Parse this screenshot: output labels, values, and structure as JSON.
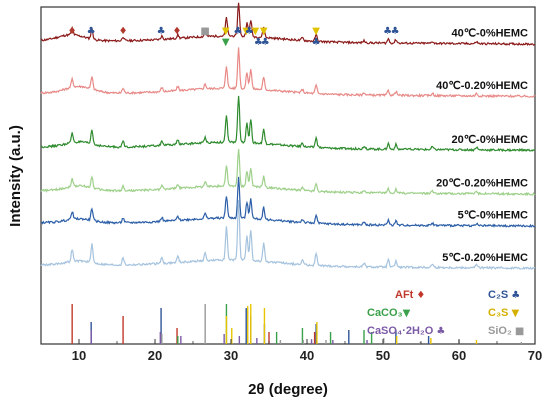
{
  "chart_data": {
    "type": "line",
    "xlabel": "2θ (degree)",
    "ylabel": "Intensity (a.u.)",
    "xlim": [
      5,
      70
    ],
    "xticks": [
      "10",
      "20",
      "30",
      "40",
      "50",
      "60",
      "70"
    ],
    "grid": false,
    "y_ticks_shown": false,
    "series": [
      {
        "name": "40℃-0%HEMC",
        "color": "#8b1a1a",
        "baseline": 0.9,
        "amp": 1.0,
        "hump_x": 9,
        "hump_amp": 0.018
      },
      {
        "name": "40℃-0.20%HEMC",
        "color": "#e88a88",
        "baseline": 0.745,
        "amp": 1.2,
        "hump_x": 10,
        "hump_amp": 0.02
      },
      {
        "name": "20℃-0%HEMC",
        "color": "#2e8b2e",
        "baseline": 0.585,
        "amp": 1.4,
        "hump_x": 10,
        "hump_amp": 0.015
      },
      {
        "name": "20℃-0.20%HEMC",
        "color": "#9ed08a",
        "baseline": 0.455,
        "amp": 1.1,
        "hump_x": 10,
        "hump_amp": 0.015
      },
      {
        "name": "5℃-0%HEMC",
        "color": "#2c5fa8",
        "baseline": 0.36,
        "amp": 1.2,
        "hump_x": 10,
        "hump_amp": 0.012
      },
      {
        "name": "5℃-0.20%HEMC",
        "color": "#a6c3de",
        "baseline": 0.235,
        "amp": 1.8,
        "hump_x": 10,
        "hump_amp": 0.012
      }
    ],
    "peaks": [
      {
        "x": 9.1,
        "h": 0.02
      },
      {
        "x": 11.7,
        "h": 0.03
      },
      {
        "x": 15.8,
        "h": 0.012
      },
      {
        "x": 20.9,
        "h": 0.01
      },
      {
        "x": 23.0,
        "h": 0.01
      },
      {
        "x": 26.6,
        "h": 0.012
      },
      {
        "x": 29.4,
        "h": 0.055
      },
      {
        "x": 31.0,
        "h": 0.1
      },
      {
        "x": 32.1,
        "h": 0.04
      },
      {
        "x": 32.6,
        "h": 0.05
      },
      {
        "x": 34.3,
        "h": 0.03
      },
      {
        "x": 39.4,
        "h": 0.008
      },
      {
        "x": 41.2,
        "h": 0.02
      },
      {
        "x": 47.5,
        "h": 0.006
      },
      {
        "x": 50.7,
        "h": 0.012
      },
      {
        "x": 51.7,
        "h": 0.01
      },
      {
        "x": 56.5,
        "h": 0.006
      },
      {
        "x": 62.3,
        "h": 0.006
      }
    ],
    "peak_markers": [
      {
        "x": 9.1,
        "symbol": "♦",
        "color": "#b03a2e"
      },
      {
        "x": 11.6,
        "symbol": "♣",
        "color": "#2f5597"
      },
      {
        "x": 15.8,
        "symbol": "♦",
        "color": "#b03a2e"
      },
      {
        "x": 20.8,
        "symbol": "♣",
        "color": "#2f5597"
      },
      {
        "x": 22.9,
        "symbol": "♦",
        "color": "#b03a2e"
      },
      {
        "x": 26.6,
        "symbol": "■",
        "color": "#999999"
      },
      {
        "x": 29.3,
        "symbol": "▼",
        "color": "#e0c200",
        "row": 0
      },
      {
        "x": 29.3,
        "symbol": "▼",
        "color": "#3aa04a",
        "row": 1
      },
      {
        "x": 30.9,
        "symbol": "♣",
        "color": "#2f5597"
      },
      {
        "x": 32.0,
        "symbol": "▼",
        "color": "#e0c200"
      },
      {
        "x": 32.4,
        "symbol": "♣",
        "color": "#2f5597"
      },
      {
        "x": 33.2,
        "symbol": "▼",
        "color": "#e0c200"
      },
      {
        "x": 34.3,
        "symbol": "▼",
        "color": "#e0c200"
      },
      {
        "x": 33.6,
        "symbol": "♣",
        "color": "#2f5597",
        "row": 1
      },
      {
        "x": 34.5,
        "symbol": "♣",
        "color": "#2f5597",
        "row": 1
      },
      {
        "x": 41.2,
        "symbol": "▼",
        "color": "#e0c200",
        "row": 0
      },
      {
        "x": 41.2,
        "symbol": "♣",
        "color": "#2f5597",
        "row": 1
      },
      {
        "x": 50.6,
        "symbol": "♣",
        "color": "#2f5597"
      },
      {
        "x": 51.6,
        "symbol": "♣",
        "color": "#2f5597"
      }
    ],
    "reference_lines": [
      {
        "phase": "AFt",
        "color": "#c0392b",
        "x": [
          9.1,
          15.8,
          22.9,
          35.0,
          41.0
        ],
        "h": [
          1.0,
          0.7,
          0.4,
          0.3,
          0.3
        ]
      },
      {
        "phase": "C2S",
        "color": "#2f5597",
        "x": [
          11.6,
          20.8,
          32.0,
          32.6,
          34.4,
          41.2,
          45.5,
          51.7,
          56.0
        ],
        "h": [
          0.55,
          0.9,
          0.9,
          0.7,
          0.5,
          0.5,
          0.35,
          0.35,
          0.2
        ]
      },
      {
        "phase": "CaCO3",
        "color": "#3aa04a",
        "x": [
          23.0,
          29.4,
          36.0,
          39.4,
          43.1,
          47.5,
          48.5
        ],
        "h": [
          0.2,
          1.0,
          0.3,
          0.4,
          0.3,
          0.35,
          0.3
        ]
      },
      {
        "phase": "C3S",
        "color": "#e8c400",
        "x": [
          29.4,
          30.1,
          32.2,
          32.6,
          34.4,
          41.3,
          51.8,
          56.3,
          62.3
        ],
        "h": [
          0.7,
          0.4,
          0.95,
          1.0,
          0.9,
          0.55,
          0.2,
          0.15,
          0.1
        ]
      },
      {
        "phase": "CaSO4·2H2O",
        "color": "#7b5aa6",
        "x": [
          11.6,
          20.7,
          23.4,
          29.1,
          31.1,
          33.4,
          40.6,
          43.4,
          47.9
        ],
        "h": [
          0.35,
          0.3,
          0.2,
          0.25,
          0.2,
          0.15,
          0.12,
          0.1,
          0.1
        ]
      },
      {
        "phase": "SiO2",
        "color": "#999999",
        "x": [
          20.9,
          26.6,
          36.5,
          39.5,
          42.5,
          50.1,
          54.9,
          60.0,
          68.2
        ],
        "h": [
          0.25,
          1.0,
          0.1,
          0.1,
          0.1,
          0.15,
          0.05,
          0.1,
          0.05
        ]
      }
    ],
    "legend": [
      {
        "label": "AFt ",
        "sym": "♦",
        "color": "#c0392b"
      },
      {
        "label": "C₂S ",
        "sym": "♣",
        "color": "#2f5597"
      },
      {
        "label": "CaCO₃",
        "sym": "▼",
        "color": "#3aa04a"
      },
      {
        "label": "C₃S ",
        "sym": "▼",
        "color": "#d4b000"
      },
      {
        "label": "CaSO₄·2H₂O ",
        "sym": "♣",
        "color": "#7b5aa6"
      },
      {
        "label": "SiO₂ ",
        "sym": "■",
        "color": "#999999"
      }
    ]
  }
}
